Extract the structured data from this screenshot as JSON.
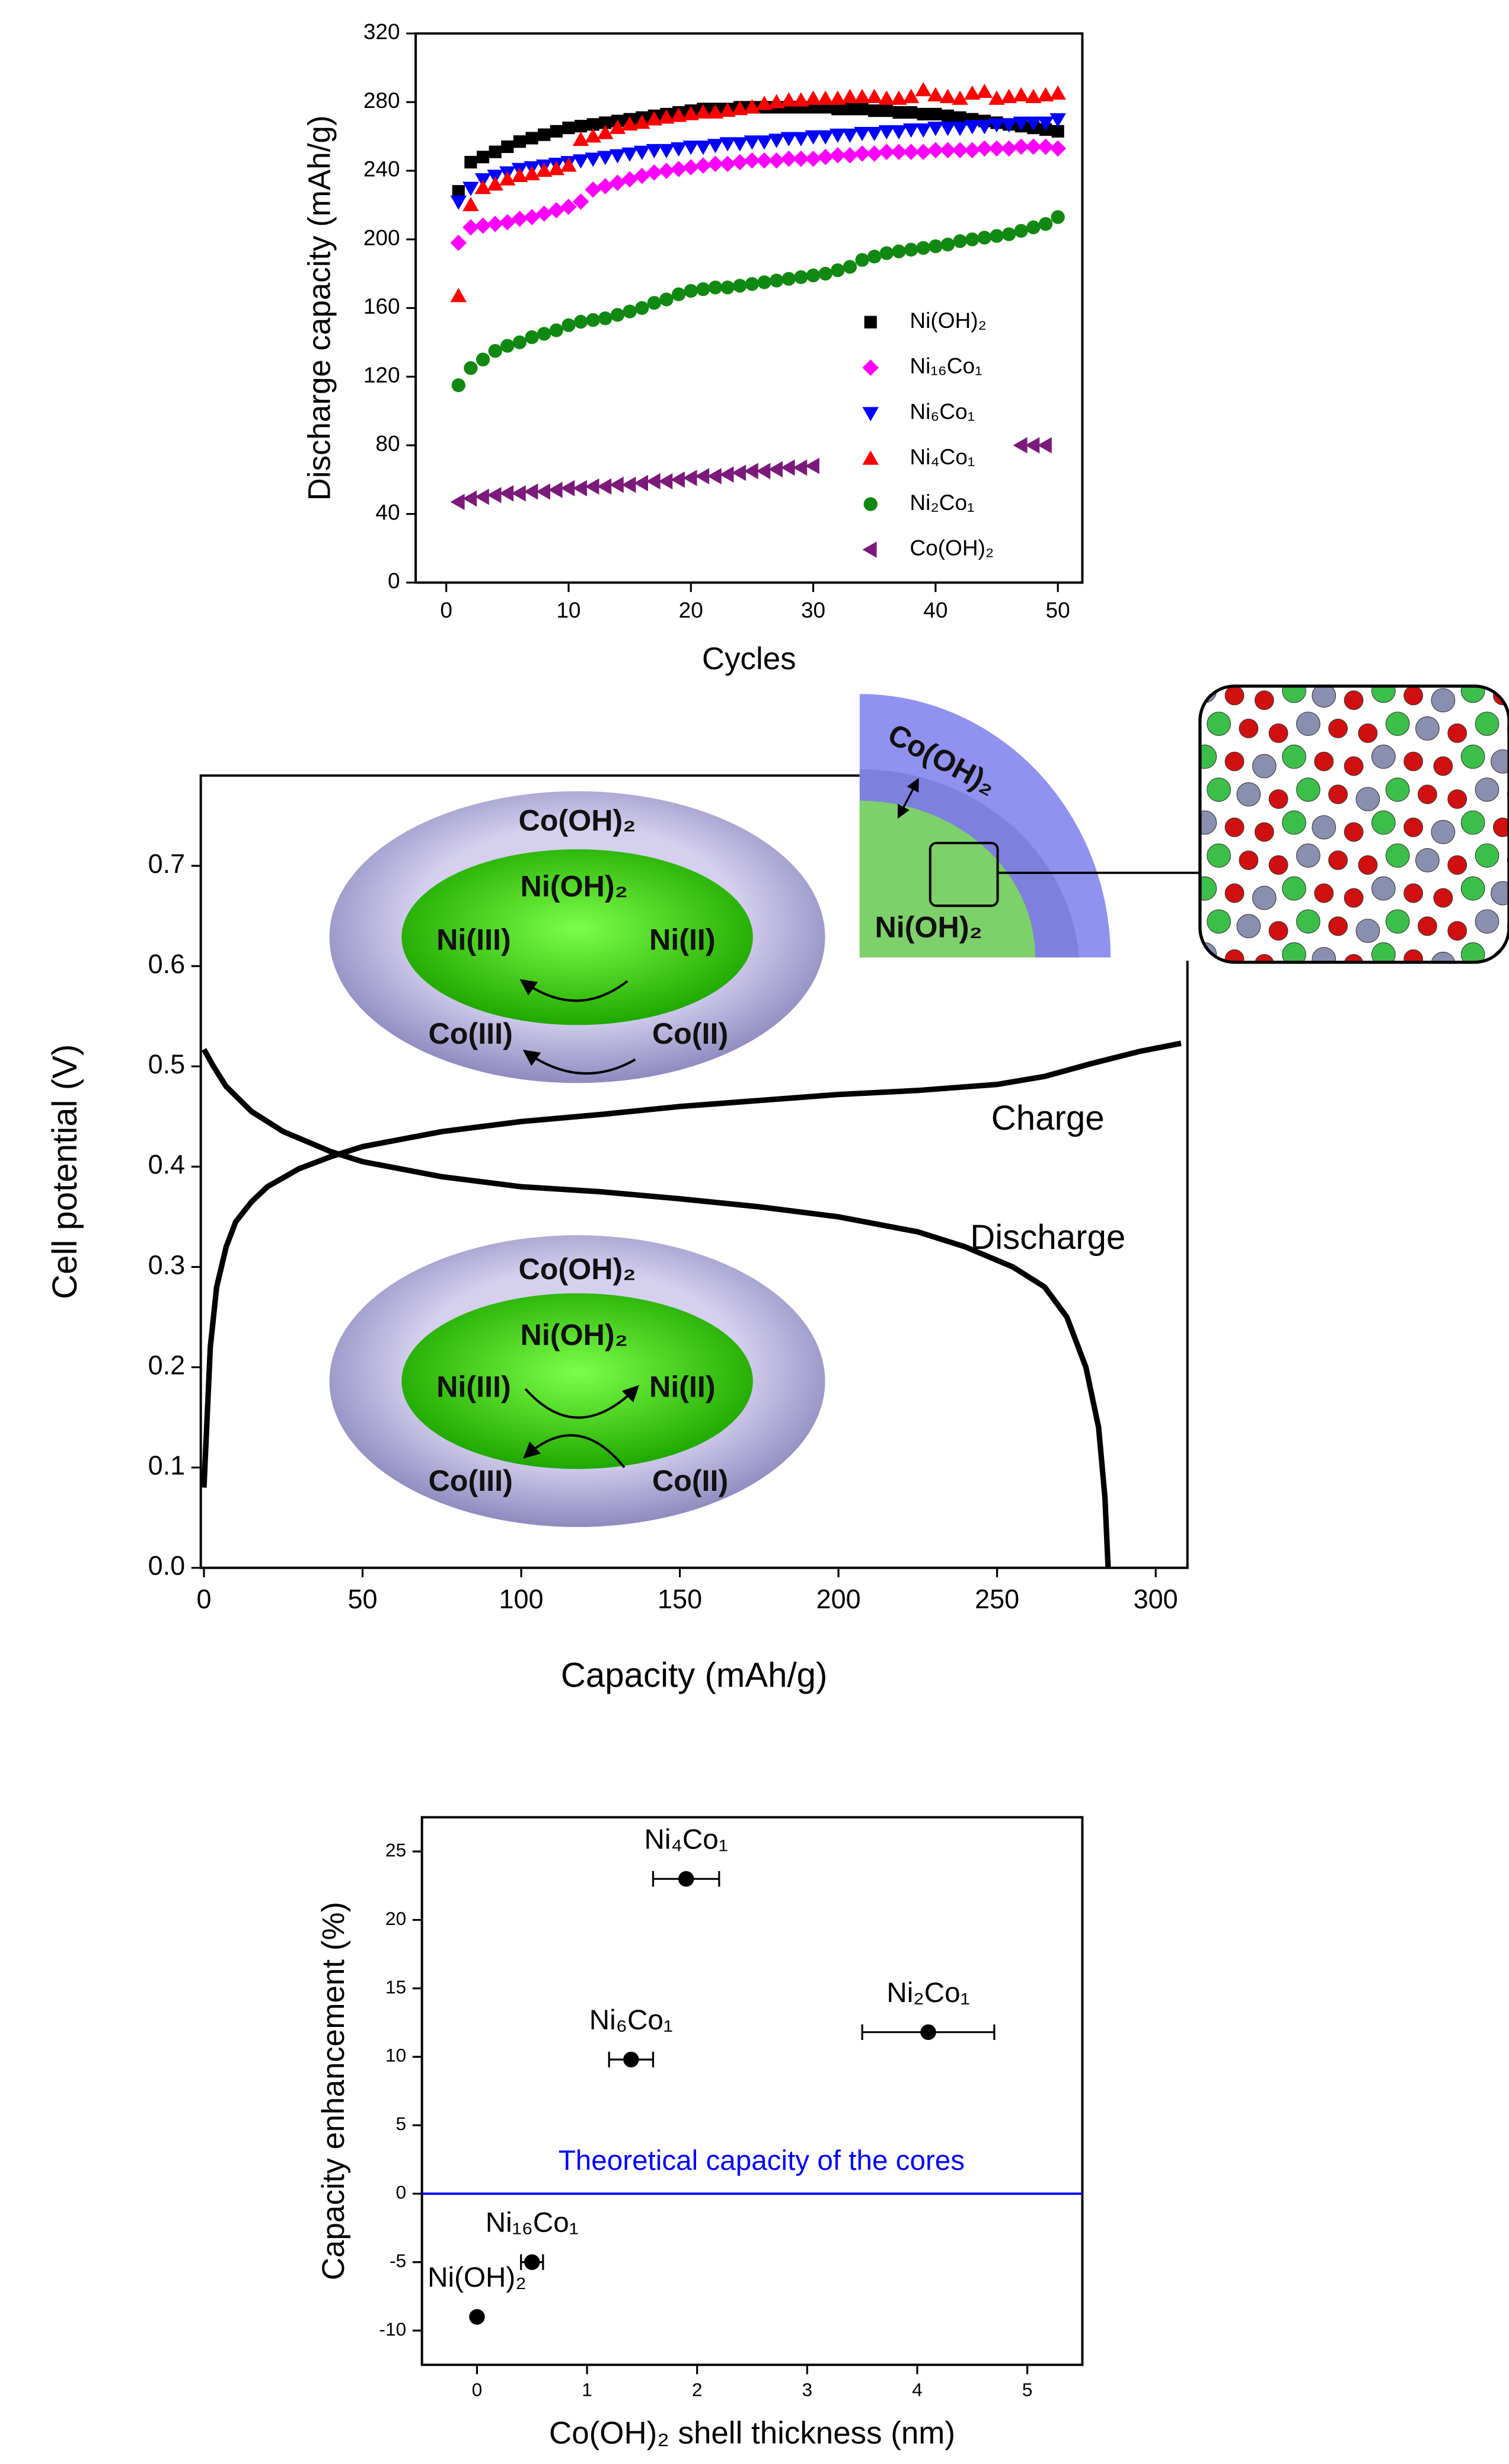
{
  "chart_data": [
    {
      "type": "scatter",
      "x_label": "Cycles",
      "y_label": "Discharge capacity (mAh/g)",
      "x": [
        1,
        2,
        3,
        4,
        5,
        6,
        7,
        8,
        9,
        10,
        11,
        12,
        13,
        14,
        15,
        16,
        17,
        18,
        19,
        20,
        21,
        22,
        23,
        24,
        25,
        26,
        27,
        28,
        29,
        30,
        31,
        32,
        33,
        34,
        35,
        36,
        37,
        38,
        39,
        40,
        41,
        42,
        43,
        44,
        45,
        46,
        47,
        48,
        49,
        50
      ],
      "xlim": [
        -2.5,
        52
      ],
      "ylim": [
        0,
        320
      ],
      "xticks": [
        0,
        10,
        20,
        30,
        40,
        50
      ],
      "yticks": [
        0,
        40,
        80,
        120,
        160,
        200,
        240,
        280,
        320
      ],
      "legend": "lower right",
      "series": [
        {
          "name": "Ni(OH)₂",
          "color": "#000000",
          "marker": "square",
          "values": [
            228,
            245,
            248,
            251,
            254,
            257,
            259,
            261,
            263,
            265,
            266,
            267,
            268,
            269,
            270,
            271,
            272,
            273,
            274,
            275,
            276,
            276,
            276,
            277,
            277,
            277,
            277,
            277,
            277,
            277,
            277,
            276,
            276,
            276,
            275,
            275,
            274,
            274,
            273,
            273,
            272,
            271,
            270,
            269,
            268,
            267,
            266,
            265,
            264,
            263
          ]
        },
        {
          "name": "Ni₁₆Co₁",
          "color": "#ff00ff",
          "marker": "diamond",
          "values": [
            198,
            207,
            208,
            209,
            210,
            212,
            213,
            215,
            217,
            219,
            222,
            229,
            231,
            233,
            235,
            237,
            239,
            240,
            241,
            242,
            243,
            244,
            244,
            245,
            246,
            246,
            246,
            247,
            247,
            247,
            248,
            249,
            249,
            250,
            250,
            251,
            251,
            251,
            251,
            252,
            252,
            252,
            252,
            253,
            253,
            253,
            254,
            254,
            254,
            253
          ]
        },
        {
          "name": "Ni₆Co₁",
          "color": "#0000ff",
          "marker": "triangle-down",
          "values": [
            222,
            230,
            235,
            237,
            239,
            241,
            242,
            243,
            244,
            245,
            246,
            247,
            248,
            249,
            250,
            251,
            252,
            252,
            253,
            254,
            254,
            255,
            256,
            256,
            257,
            257,
            258,
            259,
            259,
            260,
            260,
            261,
            261,
            262,
            262,
            263,
            263,
            264,
            264,
            265,
            265,
            265,
            266,
            266,
            267,
            267,
            268,
            268,
            268,
            270
          ]
        },
        {
          "name": "Ni₄Co₁",
          "color": "#ff0000",
          "marker": "triangle-up",
          "values": [
            167,
            220,
            230,
            232,
            235,
            237,
            238,
            240,
            241,
            243,
            258,
            260,
            262,
            265,
            267,
            268,
            270,
            271,
            272,
            273,
            274,
            274,
            275,
            276,
            277,
            279,
            280,
            281,
            281,
            282,
            282,
            282,
            283,
            283,
            283,
            282,
            282,
            283,
            287,
            284,
            283,
            282,
            285,
            286,
            282,
            283,
            284,
            283,
            284,
            285
          ]
        },
        {
          "name": "Ni₂Co₁",
          "color": "#118811",
          "marker": "circle",
          "values": [
            115,
            125,
            130,
            135,
            138,
            140,
            143,
            145,
            147,
            150,
            152,
            153,
            154,
            156,
            158,
            160,
            163,
            165,
            168,
            170,
            171,
            172,
            172,
            173,
            174,
            175,
            176,
            177,
            178,
            179,
            180,
            182,
            184,
            188,
            190,
            192,
            193,
            194,
            195,
            196,
            197,
            199,
            200,
            201,
            202,
            203,
            205,
            207,
            209,
            213
          ]
        },
        {
          "name": "Co(OH)₂",
          "color": "#7b1a7b",
          "marker": "triangle-left",
          "values": [
            47,
            49,
            50,
            51,
            52,
            52,
            53,
            53,
            54,
            55,
            55,
            56,
            56,
            57,
            57,
            58,
            59,
            59,
            60,
            61,
            62,
            62,
            63,
            64,
            65,
            65,
            66,
            67,
            67,
            68,
            null,
            null,
            null,
            null,
            null,
            null,
            null,
            null,
            null,
            null,
            null,
            null,
            null,
            null,
            null,
            null,
            80,
            80,
            80,
            null
          ]
        }
      ]
    },
    {
      "type": "line",
      "x_label": "Capacity (mAh/g)",
      "y_label": "Cell potential (V)",
      "xlim": [
        -1,
        310
      ],
      "ylim": [
        0,
        0.79
      ],
      "xticks": [
        0,
        50,
        100,
        150,
        200,
        250,
        300
      ],
      "yticks": [
        {
          "value": 0,
          "label": "0.0"
        },
        0.1,
        0.2,
        0.3,
        0.4,
        0.5,
        0.6,
        0.7
      ],
      "series": [
        {
          "name": "Charge",
          "color": "#000000",
          "x": [
            0,
            1,
            2,
            4,
            7,
            10,
            15,
            20,
            30,
            40,
            50,
            75,
            100,
            125,
            150,
            175,
            200,
            225,
            250,
            265,
            280,
            295,
            308
          ],
          "values": [
            0.08,
            0.15,
            0.22,
            0.28,
            0.32,
            0.345,
            0.365,
            0.38,
            0.398,
            0.41,
            0.42,
            0.435,
            0.445,
            0.452,
            0.46,
            0.466,
            0.472,
            0.476,
            0.482,
            0.49,
            0.503,
            0.515,
            0.523
          ]
        },
        {
          "name": "Discharge",
          "color": "#000000",
          "x": [
            0,
            3,
            7,
            15,
            25,
            40,
            50,
            75,
            100,
            125,
            150,
            175,
            200,
            225,
            240,
            255,
            265,
            272,
            278,
            282,
            284,
            285
          ],
          "values": [
            0.517,
            0.5,
            0.48,
            0.455,
            0.435,
            0.415,
            0.405,
            0.39,
            0.38,
            0.375,
            0.368,
            0.36,
            0.35,
            0.335,
            0.32,
            0.3,
            0.28,
            0.25,
            0.2,
            0.14,
            0.07,
            0.0
          ]
        }
      ],
      "insets": [
        {
          "shell": "Co(OH)₂",
          "core": "Ni(OH)₂",
          "labels": [
            "Ni(III)",
            "Ni(II)",
            "Co(III)",
            "Co(II)"
          ]
        },
        {
          "shell": "Co(OH)₂",
          "core": "Ni(OH)₂",
          "labels": [
            "Ni(III)",
            "Ni(II)",
            "Co(III)",
            "Co(II)"
          ]
        }
      ],
      "shell_image": {
        "shell": "Co(OH)₂",
        "core": "Ni(OH)₂"
      }
    },
    {
      "type": "errorbar",
      "x_label": "Co(OH)₂ shell thickness (nm)",
      "y_label": "Capacity enhancement (%)",
      "labels": [
        "Ni(OH)₂",
        "Ni₁₆Co₁",
        "Ni₆Co₁",
        "Ni₄Co₁",
        "Ni₂Co₁"
      ],
      "x": [
        0,
        0.5,
        1.4,
        1.9,
        4.1
      ],
      "values": [
        -9,
        -5,
        9.8,
        23,
        11.8
      ],
      "xerr": [
        null,
        0.1,
        0.2,
        0.3,
        0.6
      ],
      "color": "#000000",
      "xlim": [
        -0.5,
        5.5
      ],
      "ylim": [
        -12.5,
        27.5
      ],
      "xticks": [
        0,
        1,
        2,
        3,
        4,
        5
      ],
      "yticks": [
        -10,
        -5,
        0,
        5,
        10,
        15,
        20,
        25
      ],
      "hline": {
        "value": 0,
        "label": "Theoretical capacity of the cores",
        "color": "#0000ff"
      }
    }
  ]
}
